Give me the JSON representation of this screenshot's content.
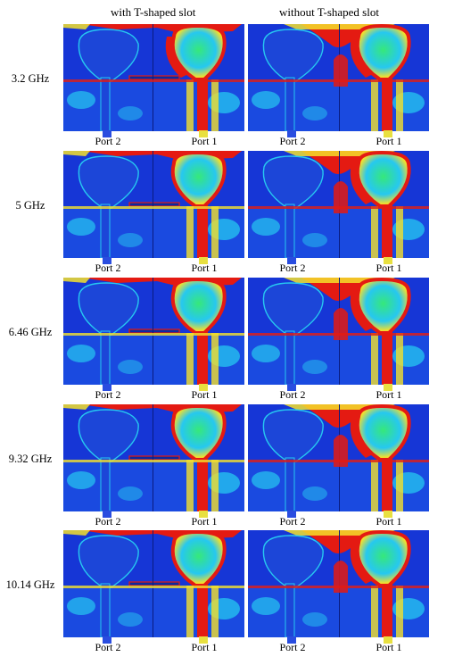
{
  "columns": [
    "with T-shaped slot",
    "without T-shaped slot"
  ],
  "rows": [
    {
      "freq": "3.2 GHz"
    },
    {
      "freq": "5 GHz"
    },
    {
      "freq": "6.46 GHz"
    },
    {
      "freq": "9.32 GHz"
    },
    {
      "freq": "10.14 GHz"
    }
  ],
  "ports": {
    "left": "Port 2",
    "right": "Port 1"
  },
  "colors": {
    "low": "#1636d6",
    "high": "#e41a12",
    "mid": "#26c8f0",
    "warm": "#f5e02a",
    "green": "#36e87a"
  }
}
